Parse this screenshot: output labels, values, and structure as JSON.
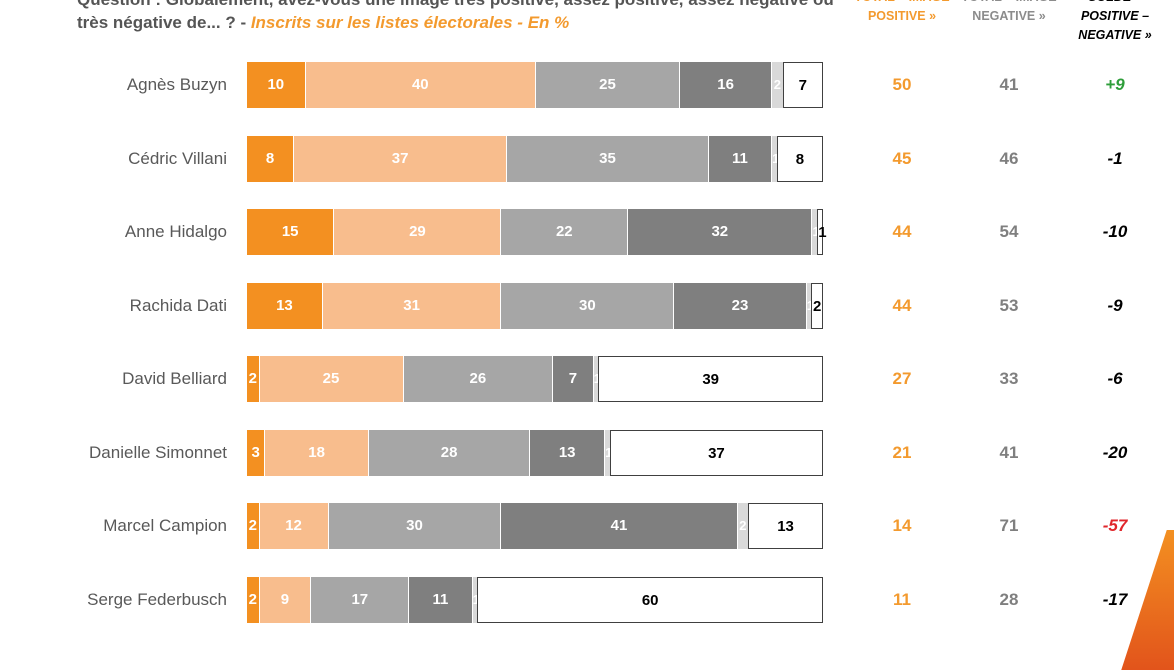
{
  "header": {
    "question": "Question : Globalement, avez-vous une image très positive, assez positive, assez négative ou très négative de... ? - ",
    "subtitle": "Inscrits sur les listes électorales - En %",
    "col_positive": "TOTAL « IMAGE POSITIVE »",
    "col_negative": "TOTAL « IMAGE NEGATIVE »",
    "col_solde": "SOLDE « POSITIVE – NEGATIVE »"
  },
  "colors": {
    "tres_positive": "#f39021",
    "assez_positive": "#f8bd8d",
    "assez_negative": "#a6a6a6",
    "tres_negative": "#7f7f7f",
    "small_grey": "#d9d9d9",
    "white_box": "#ffffff",
    "positive_total": "#f39a2e",
    "negative_total": "#7f7f7f",
    "solde_positive": "#2e9e3a",
    "solde_negative_strong": "#e0262b"
  },
  "chart_data": {
    "type": "bar",
    "orientation": "horizontal-stacked",
    "xlim": [
      0,
      100
    ],
    "categories": [
      "Agnès Buzyn",
      "Cédric Villani",
      "Anne Hidalgo",
      "Rachida Dati",
      "David Belliard",
      "Danielle Simonnet",
      "Marcel Campion",
      "Serge Federbusch"
    ],
    "series": [
      {
        "values": [
          10,
          8,
          15,
          13,
          2,
          3,
          2,
          2
        ]
      },
      {
        "values": [
          40,
          37,
          29,
          31,
          25,
          18,
          12,
          9
        ]
      },
      {
        "values": [
          25,
          35,
          22,
          30,
          26,
          28,
          30,
          17
        ]
      },
      {
        "values": [
          16,
          11,
          32,
          23,
          7,
          13,
          41,
          11
        ]
      },
      {
        "values": [
          2,
          1,
          1,
          1,
          1,
          1,
          2,
          1
        ]
      },
      {
        "values": [
          7,
          8,
          1,
          2,
          39,
          37,
          13,
          60
        ]
      }
    ],
    "total_positive": [
      "50",
      "45",
      "44",
      "44",
      "27",
      "21",
      "14",
      "11"
    ],
    "total_negative": [
      "41",
      "46",
      "54",
      "53",
      "33",
      "41",
      "71",
      "28"
    ],
    "solde": [
      "+9",
      "-1",
      "-10",
      "-9",
      "-6",
      "-20",
      "-57",
      "-17"
    ]
  }
}
